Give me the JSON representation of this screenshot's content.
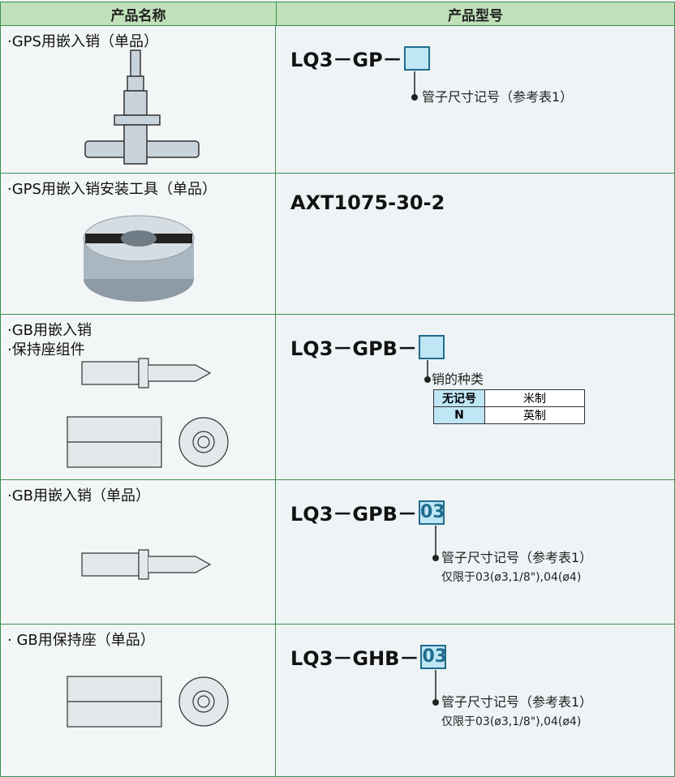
{
  "table": {
    "headers": [
      "产品名称",
      "产品型号"
    ],
    "rows": [
      {
        "name": [
          "·GPS用嵌入销（单品）"
        ],
        "model": "LQ3－GP－",
        "notes": [
          "管子尺寸记号（参考表1）"
        ]
      },
      {
        "name": [
          "·GPS用嵌入销安装工具（单品）"
        ],
        "model": "AXT1075-30-2"
      },
      {
        "name": [
          "·GB用嵌入销",
          "·保持座组件"
        ],
        "model": "LQ3－GPB－",
        "notes": [
          "销的种类"
        ],
        "options": [
          [
            "无记号",
            "米制"
          ],
          [
            "N",
            "英制"
          ]
        ]
      },
      {
        "name": [
          "·GB用嵌入销（单品）"
        ],
        "model": "LQ3－GPB－",
        "code": "03",
        "notes": [
          "管子尺寸记号（参考表1）",
          "仅限于03(ø3,1/8\"),04(ø4)"
        ]
      },
      {
        "name": [
          "· GB用保持座（单品）"
        ],
        "model": "LQ3－GHB－",
        "code": "03",
        "notes": [
          "管子尺寸记号（参考表1）",
          "仅限于03(ø3,1/8\"),04(ø4)"
        ]
      }
    ]
  }
}
